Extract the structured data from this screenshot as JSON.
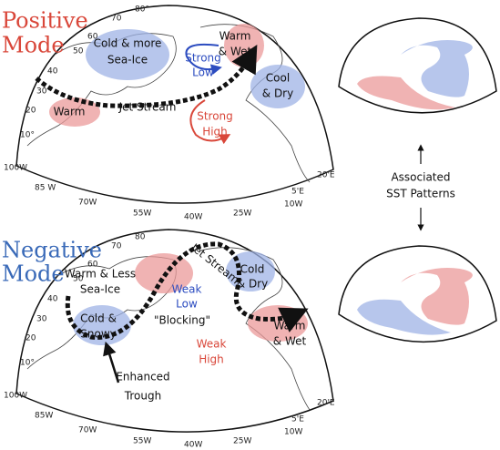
{
  "positive": {
    "title": [
      "Positive",
      "Mode"
    ],
    "cold_more_sea_ice": [
      "Cold & more",
      "Sea-Ice"
    ],
    "warm_wet": [
      "Warm",
      "& Wet"
    ],
    "strong_low": [
      "Strong",
      "Low"
    ],
    "cool_dry": [
      "Cool",
      "& Dry"
    ],
    "warm": "Warm",
    "jet_stream": "Jet Stream",
    "strong_high": [
      "Strong",
      "High"
    ],
    "grid_labels": [
      "80°",
      "70",
      "60",
      "50",
      "40",
      "30",
      "20",
      "10°",
      "100W",
      "85 W",
      "70W",
      "55W",
      "40W",
      "25W",
      "10W",
      "5'E",
      "20'E"
    ]
  },
  "negative": {
    "title": [
      "Negative",
      "Mode"
    ],
    "warm_less_sea_ice": [
      "Warm & Less",
      "Sea-Ice"
    ],
    "jet_stream": "Jet Stream",
    "cold_dry": [
      "Cold",
      "& Dry"
    ],
    "weak_low": [
      "Weak",
      "Low"
    ],
    "cold_snowy": [
      "Cold &",
      "Snowy"
    ],
    "blocking": "\"Blocking\"",
    "warm_wet": [
      "Warm",
      "& Wet"
    ],
    "weak_high": [
      "Weak",
      "High"
    ],
    "enhanced_trough": [
      "Enhanced",
      "Trough"
    ],
    "grid_labels": [
      "80",
      "70",
      "60",
      "50",
      "40",
      "30",
      "20",
      "10°",
      "100W",
      "85W",
      "70W",
      "55W",
      "40W",
      "25W",
      "10W",
      "5'E",
      "20'E"
    ]
  },
  "sst_caption": [
    "Associated",
    "SST Patterns"
  ]
}
